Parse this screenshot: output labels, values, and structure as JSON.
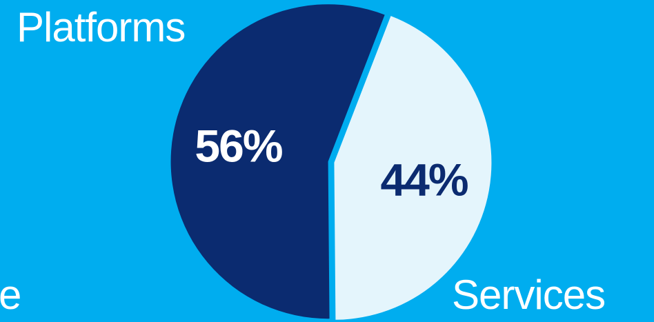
{
  "chart_data": {
    "type": "pie",
    "slices": [
      {
        "label": "Platforms",
        "value": 56,
        "value_label": "56%",
        "color": "#0b2b70",
        "text_color": "#ffffff"
      },
      {
        "label": "Services",
        "value": 44,
        "value_label": "44%",
        "color": "#e4f5fc",
        "text_color": "#0b2b70"
      }
    ],
    "partial_label": "e",
    "background": "#00adef"
  }
}
